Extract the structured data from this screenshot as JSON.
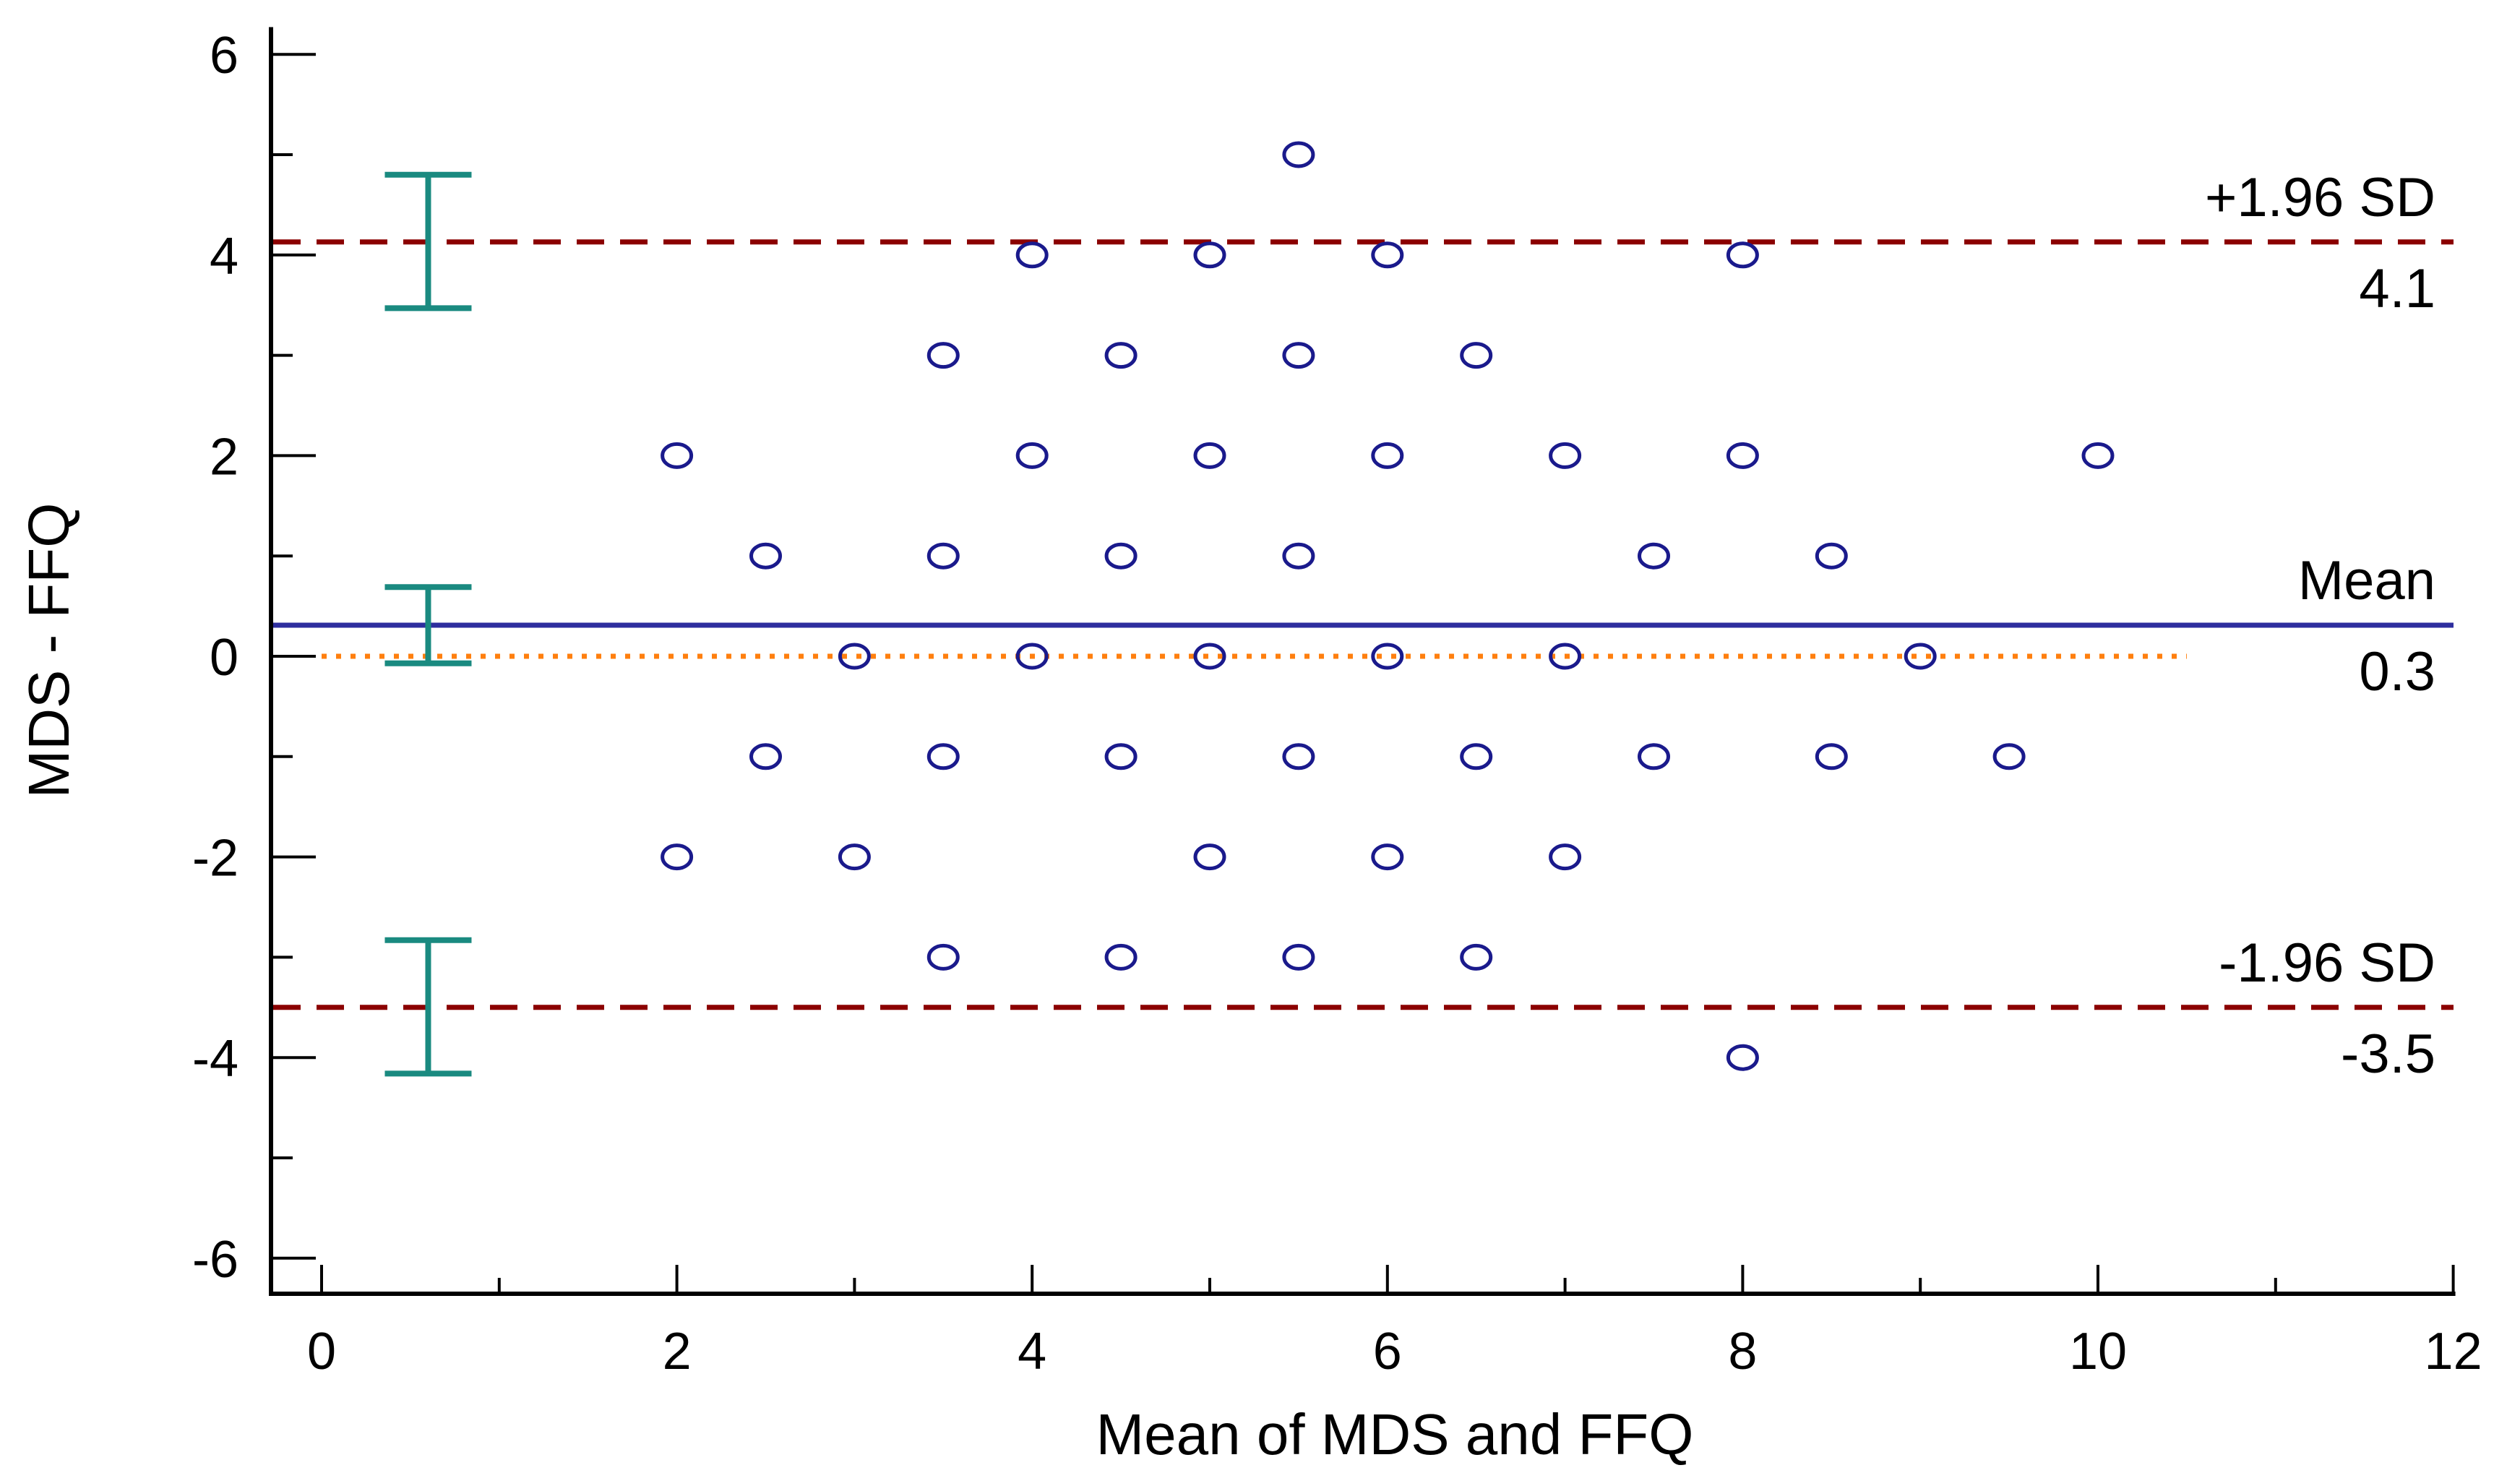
{
  "chart_data": {
    "type": "scatter",
    "xlabel": "Mean of MDS and FFQ",
    "ylabel": "MDS - FFQ",
    "xlim": [
      0,
      12
    ],
    "ylim": [
      -6.4,
      6.2
    ],
    "x_ticks": [
      0,
      2,
      4,
      6,
      8,
      10,
      12
    ],
    "y_ticks": [
      -6,
      -4,
      -2,
      0,
      2,
      4,
      6
    ],
    "grid": false,
    "marker": "open-circle",
    "colors": {
      "points": "#1a1a8c",
      "mean_line": "#2e2e9e",
      "sd_lines": "#8b0000",
      "zero_line": "#ff7f0e",
      "error_bars": "#1a8a80",
      "axes": "#000000"
    },
    "points": [
      {
        "x": 5.5,
        "y": 5
      },
      {
        "x": 4,
        "y": 4
      },
      {
        "x": 5,
        "y": 4
      },
      {
        "x": 6,
        "y": 4
      },
      {
        "x": 8,
        "y": 4
      },
      {
        "x": 3.5,
        "y": 3
      },
      {
        "x": 4.5,
        "y": 3
      },
      {
        "x": 5.5,
        "y": 3
      },
      {
        "x": 6.5,
        "y": 3
      },
      {
        "x": 2,
        "y": 2
      },
      {
        "x": 4,
        "y": 2
      },
      {
        "x": 5,
        "y": 2
      },
      {
        "x": 6,
        "y": 2
      },
      {
        "x": 7,
        "y": 2
      },
      {
        "x": 8,
        "y": 2
      },
      {
        "x": 10,
        "y": 2
      },
      {
        "x": 2.5,
        "y": 1
      },
      {
        "x": 3.5,
        "y": 1
      },
      {
        "x": 4.5,
        "y": 1
      },
      {
        "x": 5.5,
        "y": 1
      },
      {
        "x": 7.5,
        "y": 1
      },
      {
        "x": 8.5,
        "y": 1
      },
      {
        "x": 3,
        "y": 0
      },
      {
        "x": 4,
        "y": 0
      },
      {
        "x": 5,
        "y": 0
      },
      {
        "x": 6,
        "y": 0
      },
      {
        "x": 7,
        "y": 0
      },
      {
        "x": 9,
        "y": 0
      },
      {
        "x": 2.5,
        "y": -1
      },
      {
        "x": 3.5,
        "y": -1
      },
      {
        "x": 4.5,
        "y": -1
      },
      {
        "x": 5.5,
        "y": -1
      },
      {
        "x": 6.5,
        "y": -1
      },
      {
        "x": 7.5,
        "y": -1
      },
      {
        "x": 8.5,
        "y": -1
      },
      {
        "x": 9.5,
        "y": -1
      },
      {
        "x": 2,
        "y": -2
      },
      {
        "x": 3,
        "y": -2
      },
      {
        "x": 5,
        "y": -2
      },
      {
        "x": 6,
        "y": -2
      },
      {
        "x": 7,
        "y": -2
      },
      {
        "x": 3.5,
        "y": -3
      },
      {
        "x": 4.5,
        "y": -3
      },
      {
        "x": 5.5,
        "y": -3
      },
      {
        "x": 6.5,
        "y": -3
      },
      {
        "x": 8,
        "y": -4
      }
    ],
    "reference_lines": [
      {
        "id": "upper",
        "label": "+1.96 SD",
        "value_label": "4.1",
        "y": 4.13,
        "style": "dashed"
      },
      {
        "id": "mean",
        "label": "Mean",
        "value_label": "0.3",
        "y": 0.31,
        "style": "solid"
      },
      {
        "id": "lower",
        "label": "-1.96 SD",
        "value_label": "-3.5",
        "y": -3.5,
        "style": "dashed"
      }
    ],
    "zero_line": {
      "y": 0,
      "x_end": 10.5,
      "style": "dotted"
    },
    "error_bars": [
      {
        "for": "upper",
        "x": 0.6,
        "low": 3.47,
        "high": 4.8
      },
      {
        "for": "mean",
        "x": 0.6,
        "low": -0.07,
        "high": 0.69
      },
      {
        "for": "lower",
        "x": 0.6,
        "low": -4.16,
        "high": -2.83
      }
    ]
  }
}
